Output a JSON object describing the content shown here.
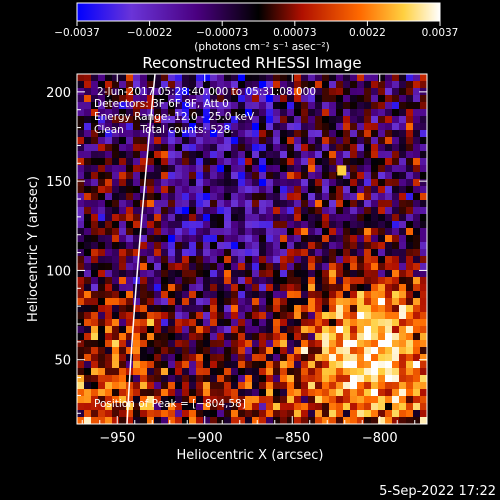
{
  "chart_data": {
    "type": "heatmap",
    "title": "Reconstructed RHESSI Image",
    "xlabel": "Heliocentric X (arcsec)",
    "ylabel": "Heliocentric Y (arcsec)",
    "xlim": [
      -973,
      -773
    ],
    "ylim": [
      14,
      210
    ],
    "x_ticks": [
      -950,
      -900,
      -850,
      -800
    ],
    "x_tick_labels": [
      "−950",
      "−900",
      "−850",
      "−800"
    ],
    "y_ticks": [
      50,
      100,
      150,
      200
    ],
    "y_tick_labels": [
      "50",
      "100",
      "150",
      "200"
    ],
    "colorbar": {
      "label": "(photons cm⁻² s⁻¹ asec⁻²)",
      "range": [
        -0.0037,
        0.0037
      ],
      "ticks": [
        "−0.0037",
        "−0.0022",
        "−0.00073",
        "0.00073",
        "0.0022",
        "0.0037"
      ],
      "colors": [
        "#0000ff",
        "#7030c0",
        "#500070",
        "#000000",
        "#b01000",
        "#ff6000",
        "#ffd040",
        "#ffffff"
      ]
    },
    "annotations": [
      "2‑Jun‑2017 05:28:40.000 to 05:31:08.000",
      "Detectors: 3F 6F 8F, Att 0",
      "Energy Range: 12.0 ‑ 25.0 keV",
      "Clean     Total counts: 528."
    ],
    "peak_label": "Position of Peak = [−804,58]",
    "peak_position": [
      -804,
      58
    ],
    "limb_line": true
  },
  "footer": {
    "timestamp": "5-Sep-2022 17:22"
  }
}
